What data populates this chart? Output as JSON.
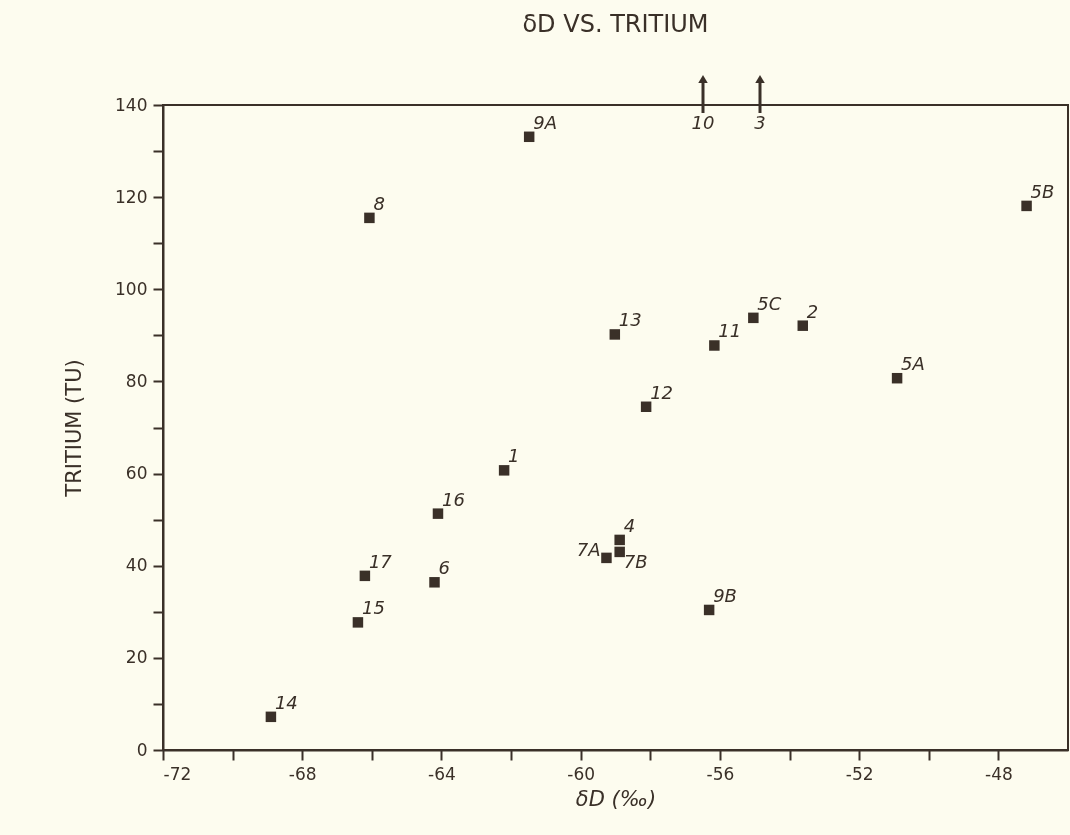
{
  "chart_data": {
    "type": "scatter",
    "title": "δD VS. TRITIUM",
    "xlabel": "δD (‰)",
    "ylabel": "TRITIUM (TU)",
    "xlim": [
      -72,
      -46
    ],
    "ylim": [
      0,
      140
    ],
    "xticks": [
      -72,
      {
        "value": -70,
        "label": null
      },
      -68,
      {
        "value": -66,
        "label": null
      },
      -64,
      {
        "value": -62,
        "label": null
      },
      -60,
      {
        "value": -58,
        "label": null
      },
      -56,
      {
        "value": -54,
        "label": null
      },
      -52,
      {
        "value": -50,
        "label": null
      },
      -48
    ],
    "yticks": [
      0,
      {
        "value": 10,
        "label": null
      },
      20,
      {
        "value": 30,
        "label": null
      },
      40,
      {
        "value": 50,
        "label": null
      },
      60,
      {
        "value": 70,
        "label": null
      },
      80,
      {
        "value": 90,
        "label": null
      },
      100,
      {
        "value": 110,
        "label": null
      },
      120,
      {
        "value": 130,
        "label": null
      },
      140
    ],
    "grid": false,
    "marker": "square",
    "series": [
      {
        "color": "#3a3028",
        "x": [
          -68.9,
          -66.4,
          -66.2,
          -64.2,
          -64.1,
          -62.2,
          -59.26,
          -58.88,
          -58.88,
          -66.07,
          -61.48,
          -47.19,
          -59.02,
          -56.16,
          -55.04,
          -53.62,
          -50.91,
          -58.12,
          -56.31
        ],
        "values": [
          7.2,
          27.7,
          37.8,
          36.4,
          51.3,
          60.7,
          41.7,
          45.6,
          43.0,
          115.5,
          133.1,
          118.1,
          90.2,
          87.8,
          93.8,
          92.1,
          80.7,
          74.5,
          30.4
        ]
      }
    ],
    "annotations": [
      {
        "text": "14",
        "x": -68.9,
        "y": 7.2
      },
      {
        "text": "15",
        "x": -66.4,
        "y": 27.7
      },
      {
        "text": "17",
        "x": -66.2,
        "y": 37.8
      },
      {
        "text": "6",
        "x": -64.2,
        "y": 36.4
      },
      {
        "text": "16",
        "x": -64.1,
        "y": 51.3
      },
      {
        "text": "1",
        "x": -62.2,
        "y": 60.7
      },
      {
        "text": "7A",
        "x": -59.26,
        "y": 41.7
      },
      {
        "text": "4",
        "x": -58.88,
        "y": 45.6
      },
      {
        "text": "7B",
        "x": -58.88,
        "y": 43.0
      },
      {
        "text": "8",
        "x": -66.07,
        "y": 115.5
      },
      {
        "text": "9A",
        "x": -61.48,
        "y": 133.1
      },
      {
        "text": "5B",
        "x": -47.19,
        "y": 118.1
      },
      {
        "text": "13",
        "x": -59.02,
        "y": 90.2
      },
      {
        "text": "11",
        "x": -56.16,
        "y": 87.8
      },
      {
        "text": "5C",
        "x": -55.04,
        "y": 93.8
      },
      {
        "text": "2",
        "x": -53.62,
        "y": 92.1
      },
      {
        "text": "5A",
        "x": -50.91,
        "y": 80.7
      },
      {
        "text": "12",
        "x": -58.12,
        "y": 74.5
      },
      {
        "text": "9B",
        "x": -56.31,
        "y": 30.4
      },
      "10",
      "3"
    ]
  }
}
